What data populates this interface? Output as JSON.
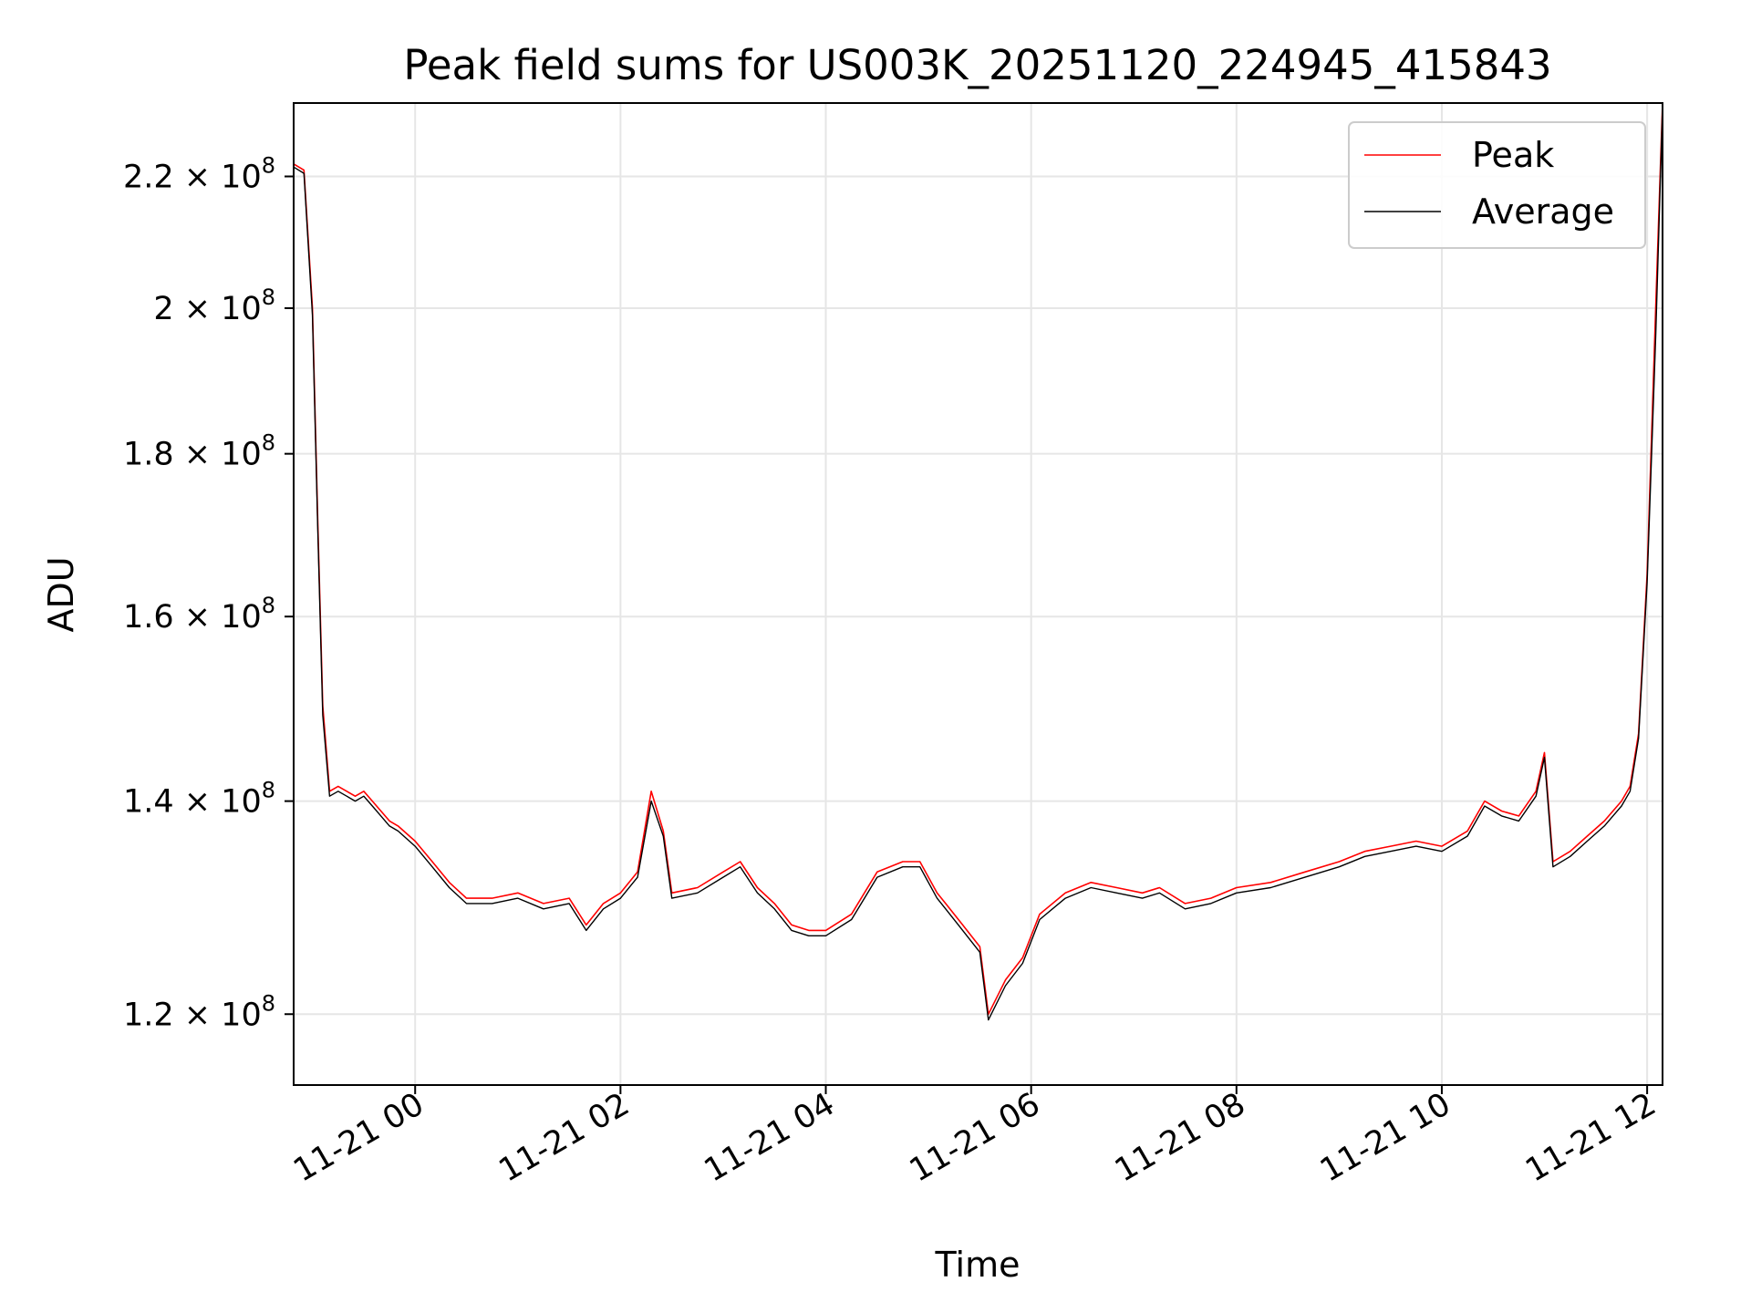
{
  "chart_data": {
    "type": "line",
    "title": "Peak field sums for US003K_20251120_224945_415843",
    "xlabel": "Time",
    "ylabel": "ADU",
    "yscale": "log",
    "grid": true,
    "legend_position": "top-right",
    "xlim": [
      "2025-11-20 22:49",
      "2025-11-21 12:09"
    ],
    "ylim": [
      114000000,
      232000000
    ],
    "x_ticks": [
      "11-21 00",
      "11-21 02",
      "11-21 04",
      "11-21 06",
      "11-21 08",
      "11-21 10",
      "11-21 12"
    ],
    "y_ticks": [
      {
        "mantissa": "1.2",
        "exponent": "8",
        "value": 120000000
      },
      {
        "mantissa": "1.4",
        "exponent": "8",
        "value": 140000000
      },
      {
        "mantissa": "1.6",
        "exponent": "8",
        "value": 160000000
      },
      {
        "mantissa": "1.8",
        "exponent": "8",
        "value": 180000000
      },
      {
        "mantissa": "2",
        "exponent": "8",
        "value": 200000000
      },
      {
        "mantissa": "2.2",
        "exponent": "8",
        "value": 220000000
      }
    ],
    "x": [
      "2025-11-20 22:49",
      "2025-11-20 22:55",
      "2025-11-20 23:00",
      "2025-11-20 23:03",
      "2025-11-20 23:06",
      "2025-11-20 23:10",
      "2025-11-20 23:15",
      "2025-11-20 23:20",
      "2025-11-20 23:25",
      "2025-11-20 23:30",
      "2025-11-20 23:35",
      "2025-11-20 23:40",
      "2025-11-20 23:45",
      "2025-11-20 23:50",
      "2025-11-21 00:00",
      "2025-11-21 00:10",
      "2025-11-21 00:20",
      "2025-11-21 00:30",
      "2025-11-21 00:45",
      "2025-11-21 01:00",
      "2025-11-21 01:15",
      "2025-11-21 01:30",
      "2025-11-21 01:40",
      "2025-11-21 01:50",
      "2025-11-21 02:00",
      "2025-11-21 02:10",
      "2025-11-21 02:18",
      "2025-11-21 02:25",
      "2025-11-21 02:30",
      "2025-11-21 02:45",
      "2025-11-21 03:00",
      "2025-11-21 03:10",
      "2025-11-21 03:20",
      "2025-11-21 03:30",
      "2025-11-21 03:40",
      "2025-11-21 03:50",
      "2025-11-21 04:00",
      "2025-11-21 04:15",
      "2025-11-21 04:30",
      "2025-11-21 04:45",
      "2025-11-21 04:55",
      "2025-11-21 05:05",
      "2025-11-21 05:10",
      "2025-11-21 05:20",
      "2025-11-21 05:30",
      "2025-11-21 05:35",
      "2025-11-21 05:45",
      "2025-11-21 05:55",
      "2025-11-21 06:05",
      "2025-11-21 06:20",
      "2025-11-21 06:35",
      "2025-11-21 06:50",
      "2025-11-21 07:05",
      "2025-11-21 07:15",
      "2025-11-21 07:30",
      "2025-11-21 07:45",
      "2025-11-21 08:00",
      "2025-11-21 08:20",
      "2025-11-21 08:40",
      "2025-11-21 09:00",
      "2025-11-21 09:15",
      "2025-11-21 09:30",
      "2025-11-21 09:45",
      "2025-11-21 10:00",
      "2025-11-21 10:15",
      "2025-11-21 10:25",
      "2025-11-21 10:35",
      "2025-11-21 10:45",
      "2025-11-21 10:55",
      "2025-11-21 11:00",
      "2025-11-21 11:05",
      "2025-11-21 11:15",
      "2025-11-21 11:25",
      "2025-11-21 11:35",
      "2025-11-21 11:45",
      "2025-11-21 11:50",
      "2025-11-21 11:55",
      "2025-11-21 12:00",
      "2025-11-21 12:05",
      "2025-11-21 12:09"
    ],
    "series": [
      {
        "name": "Peak",
        "color": "#ff0000",
        "values": [
          222000000,
          221000000,
          200000000,
          172000000,
          150000000,
          141000000,
          141500000,
          141000000,
          140500000,
          141000000,
          140000000,
          139000000,
          138000000,
          137500000,
          136000000,
          134000000,
          132000000,
          130500000,
          130500000,
          131000000,
          130000000,
          130500000,
          128000000,
          130000000,
          131000000,
          133000000,
          141000000,
          137000000,
          131000000,
          131500000,
          133000000,
          134000000,
          131500000,
          130000000,
          128000000,
          127500000,
          127500000,
          129000000,
          133000000,
          134000000,
          134000000,
          131000000,
          130000000,
          128000000,
          126000000,
          120000000,
          123000000,
          125000000,
          129000000,
          131000000,
          132000000,
          131500000,
          131000000,
          131500000,
          130000000,
          130500000,
          131500000,
          132000000,
          133000000,
          134000000,
          135000000,
          135500000,
          136000000,
          135500000,
          137000000,
          140000000,
          139000000,
          138500000,
          141000000,
          145000000,
          134000000,
          135000000,
          136500000,
          138000000,
          140000000,
          141500000,
          147000000,
          165000000,
          200000000,
          232000000
        ]
      },
      {
        "name": "Average",
        "color": "#000000",
        "values": [
          221500000,
          220500000,
          199000000,
          171000000,
          149000000,
          140500000,
          141000000,
          140500000,
          140000000,
          140500000,
          139500000,
          138500000,
          137500000,
          137000000,
          135500000,
          133500000,
          131500000,
          130000000,
          130000000,
          130500000,
          129500000,
          130000000,
          127500000,
          129500000,
          130500000,
          132500000,
          140000000,
          136500000,
          130500000,
          131000000,
          132500000,
          133500000,
          131000000,
          129500000,
          127500000,
          127000000,
          127000000,
          128500000,
          132500000,
          133500000,
          133500000,
          130500000,
          129500000,
          127500000,
          125500000,
          119500000,
          122500000,
          124500000,
          128500000,
          130500000,
          131500000,
          131000000,
          130500000,
          131000000,
          129500000,
          130000000,
          131000000,
          131500000,
          132500000,
          133500000,
          134500000,
          135000000,
          135500000,
          135000000,
          136500000,
          139500000,
          138500000,
          138000000,
          140500000,
          144500000,
          133500000,
          134500000,
          136000000,
          137500000,
          139500000,
          141000000,
          146500000,
          164000000,
          196000000,
          231500000
        ]
      }
    ]
  }
}
